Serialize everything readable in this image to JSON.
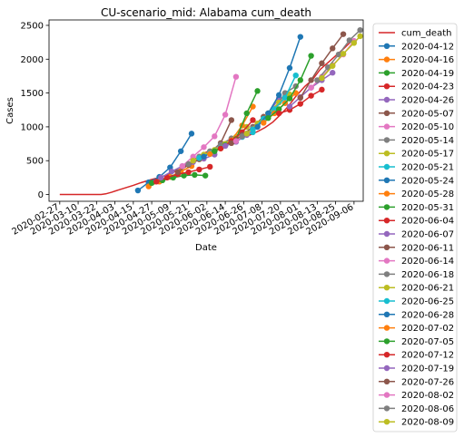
{
  "chart_data": {
    "type": "line",
    "title": "CU-scenario_mid: Alabama cum_death",
    "xlabel": "Date",
    "ylabel": "Cases",
    "ylim": [
      -100,
      2580
    ],
    "xlim": [
      "2020-02-20",
      "2020-09-12"
    ],
    "grid": false,
    "legend_position": "outside-right",
    "x_ticks": [
      "2020-02-27",
      "2020-03-10",
      "2020-03-22",
      "2020-04-03",
      "2020-04-15",
      "2020-04-27",
      "2020-05-09",
      "2020-05-21",
      "2020-06-02",
      "2020-06-14",
      "2020-06-26",
      "2020-07-08",
      "2020-07-20",
      "2020-08-01",
      "2020-08-13",
      "2020-08-25",
      "2020-09-06"
    ],
    "y_ticks": [
      0,
      500,
      1000,
      1500,
      2000,
      2500
    ],
    "colors": [
      "#1f77b4",
      "#ff7f0e",
      "#2ca02c",
      "#d62728",
      "#9467bd",
      "#8c564b",
      "#e377c2",
      "#7f7f7f",
      "#bcbd22",
      "#17becf"
    ],
    "observed": {
      "name": "cum_death",
      "color": "#d62728",
      "points": [
        [
          "2020-02-27",
          0
        ],
        [
          "2020-03-05",
          0
        ],
        [
          "2020-03-12",
          0
        ],
        [
          "2020-03-19",
          0
        ],
        [
          "2020-03-25",
          0
        ],
        [
          "2020-03-28",
          10
        ],
        [
          "2020-04-01",
          35
        ],
        [
          "2020-04-05",
          65
        ],
        [
          "2020-04-10",
          100
        ],
        [
          "2020-04-15",
          135
        ],
        [
          "2020-04-20",
          175
        ],
        [
          "2020-04-25",
          210
        ],
        [
          "2020-04-30",
          240
        ],
        [
          "2020-05-05",
          275
        ],
        [
          "2020-05-10",
          320
        ],
        [
          "2020-05-15",
          370
        ],
        [
          "2020-05-20",
          440
        ],
        [
          "2020-05-25",
          520
        ],
        [
          "2020-05-30",
          600
        ],
        [
          "2020-06-04",
          650
        ],
        [
          "2020-06-10",
          690
        ],
        [
          "2020-06-15",
          730
        ],
        [
          "2020-06-20",
          780
        ],
        [
          "2020-06-25",
          840
        ],
        [
          "2020-06-30",
          880
        ],
        [
          "2020-07-05",
          930
        ],
        [
          "2020-07-10",
          990
        ],
        [
          "2020-07-15",
          1070
        ],
        [
          "2020-07-20",
          1180
        ],
        [
          "2020-07-25",
          1300
        ],
        [
          "2020-07-30",
          1450
        ],
        [
          "2020-08-05",
          1600
        ],
        [
          "2020-08-10",
          1700
        ],
        [
          "2020-08-15",
          1850
        ],
        [
          "2020-08-20",
          1950
        ],
        [
          "2020-08-25",
          2050
        ],
        [
          "2020-08-30",
          2150
        ],
        [
          "2020-09-05",
          2280
        ]
      ]
    },
    "series": [
      {
        "name": "2020-04-12",
        "values": [
          [
            "2020-04-18",
            60
          ],
          [
            "2020-04-25",
            180
          ],
          [
            "2020-05-02",
            260
          ],
          [
            "2020-05-09",
            400
          ],
          [
            "2020-05-16",
            640
          ],
          [
            "2020-05-23",
            900
          ]
        ]
      },
      {
        "name": "2020-04-16",
        "values": [
          [
            "2020-04-25",
            120
          ],
          [
            "2020-05-02",
            190
          ],
          [
            "2020-05-09",
            260
          ],
          [
            "2020-05-16",
            340
          ],
          [
            "2020-05-23",
            420
          ]
        ]
      },
      {
        "name": "2020-04-19",
        "values": [
          [
            "2020-04-27",
            170
          ],
          [
            "2020-05-04",
            210
          ],
          [
            "2020-05-11",
            250
          ],
          [
            "2020-05-18",
            280
          ],
          [
            "2020-05-25",
            290
          ],
          [
            "2020-06-01",
            280
          ]
        ]
      },
      {
        "name": "2020-04-23",
        "values": [
          [
            "2020-04-30",
            190
          ],
          [
            "2020-05-07",
            250
          ],
          [
            "2020-05-14",
            300
          ],
          [
            "2020-05-21",
            330
          ],
          [
            "2020-05-28",
            370
          ],
          [
            "2020-06-04",
            410
          ]
        ]
      },
      {
        "name": "2020-04-26",
        "values": [
          [
            "2020-05-03",
            250
          ],
          [
            "2020-05-10",
            340
          ],
          [
            "2020-05-17",
            420
          ],
          [
            "2020-05-24",
            480
          ],
          [
            "2020-05-31",
            530
          ],
          [
            "2020-06-07",
            590
          ]
        ]
      },
      {
        "name": "2020-05-07",
        "values": [
          [
            "2020-05-14",
            330
          ],
          [
            "2020-05-21",
            440
          ],
          [
            "2020-05-28",
            520
          ],
          [
            "2020-06-04",
            620
          ],
          [
            "2020-06-11",
            760
          ],
          [
            "2020-06-18",
            1100
          ]
        ]
      },
      {
        "name": "2020-05-10",
        "values": [
          [
            "2020-05-17",
            420
          ],
          [
            "2020-05-24",
            560
          ],
          [
            "2020-05-31",
            700
          ],
          [
            "2020-06-07",
            860
          ],
          [
            "2020-06-14",
            1180
          ],
          [
            "2020-06-21",
            1740
          ]
        ]
      },
      {
        "name": "2020-05-14",
        "values": [
          [
            "2020-05-21",
            450
          ],
          [
            "2020-05-28",
            560
          ],
          [
            "2020-06-04",
            640
          ],
          [
            "2020-06-11",
            740
          ],
          [
            "2020-06-18",
            830
          ],
          [
            "2020-06-25",
            920
          ]
        ]
      },
      {
        "name": "2020-05-17",
        "values": [
          [
            "2020-05-24",
            500
          ],
          [
            "2020-05-31",
            590
          ],
          [
            "2020-06-07",
            660
          ],
          [
            "2020-06-14",
            750
          ],
          [
            "2020-06-21",
            850
          ],
          [
            "2020-06-28",
            1000
          ]
        ]
      },
      {
        "name": "2020-05-21",
        "values": [
          [
            "2020-05-28",
            540
          ],
          [
            "2020-06-04",
            610
          ],
          [
            "2020-06-11",
            690
          ],
          [
            "2020-06-18",
            770
          ],
          [
            "2020-06-25",
            850
          ],
          [
            "2020-07-02",
            920
          ]
        ]
      },
      {
        "name": "2020-05-24",
        "values": [
          [
            "2020-05-31",
            560
          ],
          [
            "2020-06-07",
            640
          ],
          [
            "2020-06-14",
            720
          ],
          [
            "2020-06-21",
            780
          ],
          [
            "2020-06-28",
            900
          ],
          [
            "2020-07-05",
            1000
          ]
        ]
      },
      {
        "name": "2020-05-28",
        "values": [
          [
            "2020-06-04",
            600
          ],
          [
            "2020-06-11",
            680
          ],
          [
            "2020-06-18",
            800
          ],
          [
            "2020-06-25",
            1020
          ],
          [
            "2020-07-02",
            1300
          ]
        ]
      },
      {
        "name": "2020-05-31",
        "values": [
          [
            "2020-06-07",
            640
          ],
          [
            "2020-06-14",
            730
          ],
          [
            "2020-06-21",
            820
          ],
          [
            "2020-06-28",
            1200
          ],
          [
            "2020-07-05",
            1530
          ]
        ]
      },
      {
        "name": "2020-06-04",
        "values": [
          [
            "2020-06-11",
            680
          ],
          [
            "2020-06-18",
            790
          ],
          [
            "2020-06-25",
            920
          ],
          [
            "2020-07-02",
            1100
          ]
        ]
      },
      {
        "name": "2020-06-07",
        "values": [
          [
            "2020-06-14",
            720
          ],
          [
            "2020-06-21",
            780
          ],
          [
            "2020-06-28",
            880
          ],
          [
            "2020-07-05",
            1020
          ],
          [
            "2020-07-12",
            1200
          ],
          [
            "2020-07-19",
            1420
          ]
        ]
      },
      {
        "name": "2020-06-11",
        "values": [
          [
            "2020-06-18",
            760
          ],
          [
            "2020-06-25",
            880
          ],
          [
            "2020-07-02",
            1000
          ],
          [
            "2020-07-09",
            1150
          ]
        ]
      },
      {
        "name": "2020-06-14",
        "values": [
          [
            "2020-06-21",
            790
          ],
          [
            "2020-06-28",
            900
          ],
          [
            "2020-07-05",
            1020
          ],
          [
            "2020-07-12",
            1180
          ],
          [
            "2020-07-19",
            1360
          ]
        ]
      },
      {
        "name": "2020-06-18",
        "values": [
          [
            "2020-06-25",
            860
          ],
          [
            "2020-07-02",
            980
          ],
          [
            "2020-07-09",
            1100
          ],
          [
            "2020-07-16",
            1250
          ],
          [
            "2020-07-23",
            1500
          ],
          [
            "2020-07-30",
            1600
          ]
        ]
      },
      {
        "name": "2020-06-21",
        "values": [
          [
            "2020-06-28",
            900
          ],
          [
            "2020-07-05",
            1050
          ],
          [
            "2020-07-12",
            1200
          ],
          [
            "2020-07-19",
            1360
          ],
          [
            "2020-07-26",
            1480
          ]
        ]
      },
      {
        "name": "2020-06-25",
        "values": [
          [
            "2020-07-02",
            960
          ],
          [
            "2020-07-09",
            1120
          ],
          [
            "2020-07-16",
            1260
          ],
          [
            "2020-07-23",
            1430
          ],
          [
            "2020-07-30",
            1760
          ]
        ]
      },
      {
        "name": "2020-06-28",
        "values": [
          [
            "2020-07-05",
            1000
          ],
          [
            "2020-07-12",
            1200
          ],
          [
            "2020-07-19",
            1470
          ],
          [
            "2020-07-26",
            1870
          ],
          [
            "2020-08-02",
            2330
          ]
        ]
      },
      {
        "name": "2020-07-02",
        "values": [
          [
            "2020-07-09",
            1060
          ],
          [
            "2020-07-16",
            1200
          ],
          [
            "2020-07-23",
            1350
          ],
          [
            "2020-07-30",
            1500
          ]
        ]
      },
      {
        "name": "2020-07-05",
        "values": [
          [
            "2020-07-12",
            1130
          ],
          [
            "2020-07-19",
            1260
          ],
          [
            "2020-07-26",
            1420
          ],
          [
            "2020-08-02",
            1690
          ],
          [
            "2020-08-09",
            2050
          ]
        ]
      },
      {
        "name": "2020-07-12",
        "values": [
          [
            "2020-07-19",
            1200
          ],
          [
            "2020-07-26",
            1250
          ],
          [
            "2020-08-02",
            1340
          ],
          [
            "2020-08-09",
            1460
          ],
          [
            "2020-08-16",
            1550
          ]
        ]
      },
      {
        "name": "2020-07-19",
        "values": [
          [
            "2020-07-26",
            1300
          ],
          [
            "2020-08-02",
            1440
          ],
          [
            "2020-08-09",
            1580
          ],
          [
            "2020-08-16",
            1690
          ],
          [
            "2020-08-23",
            1800
          ]
        ]
      },
      {
        "name": "2020-07-26",
        "values": [
          [
            "2020-08-02",
            1430
          ],
          [
            "2020-08-09",
            1690
          ],
          [
            "2020-08-16",
            1940
          ],
          [
            "2020-08-23",
            2160
          ],
          [
            "2020-08-30",
            2370
          ]
        ]
      },
      {
        "name": "2020-08-02",
        "values": [
          [
            "2020-08-09",
            1580
          ],
          [
            "2020-08-16",
            1740
          ],
          [
            "2020-08-23",
            1910
          ],
          [
            "2020-08-30",
            2070
          ],
          [
            "2020-09-06",
            2270
          ]
        ]
      },
      {
        "name": "2020-08-06",
        "values": [
          [
            "2020-08-13",
            1690
          ],
          [
            "2020-08-20",
            1880
          ],
          [
            "2020-08-27",
            2070
          ],
          [
            "2020-09-03",
            2280
          ],
          [
            "2020-09-10",
            2430
          ]
        ]
      },
      {
        "name": "2020-08-09",
        "values": [
          [
            "2020-08-16",
            1720
          ],
          [
            "2020-08-23",
            1900
          ],
          [
            "2020-08-30",
            2080
          ],
          [
            "2020-09-06",
            2240
          ],
          [
            "2020-09-10",
            2340
          ]
        ]
      }
    ]
  }
}
